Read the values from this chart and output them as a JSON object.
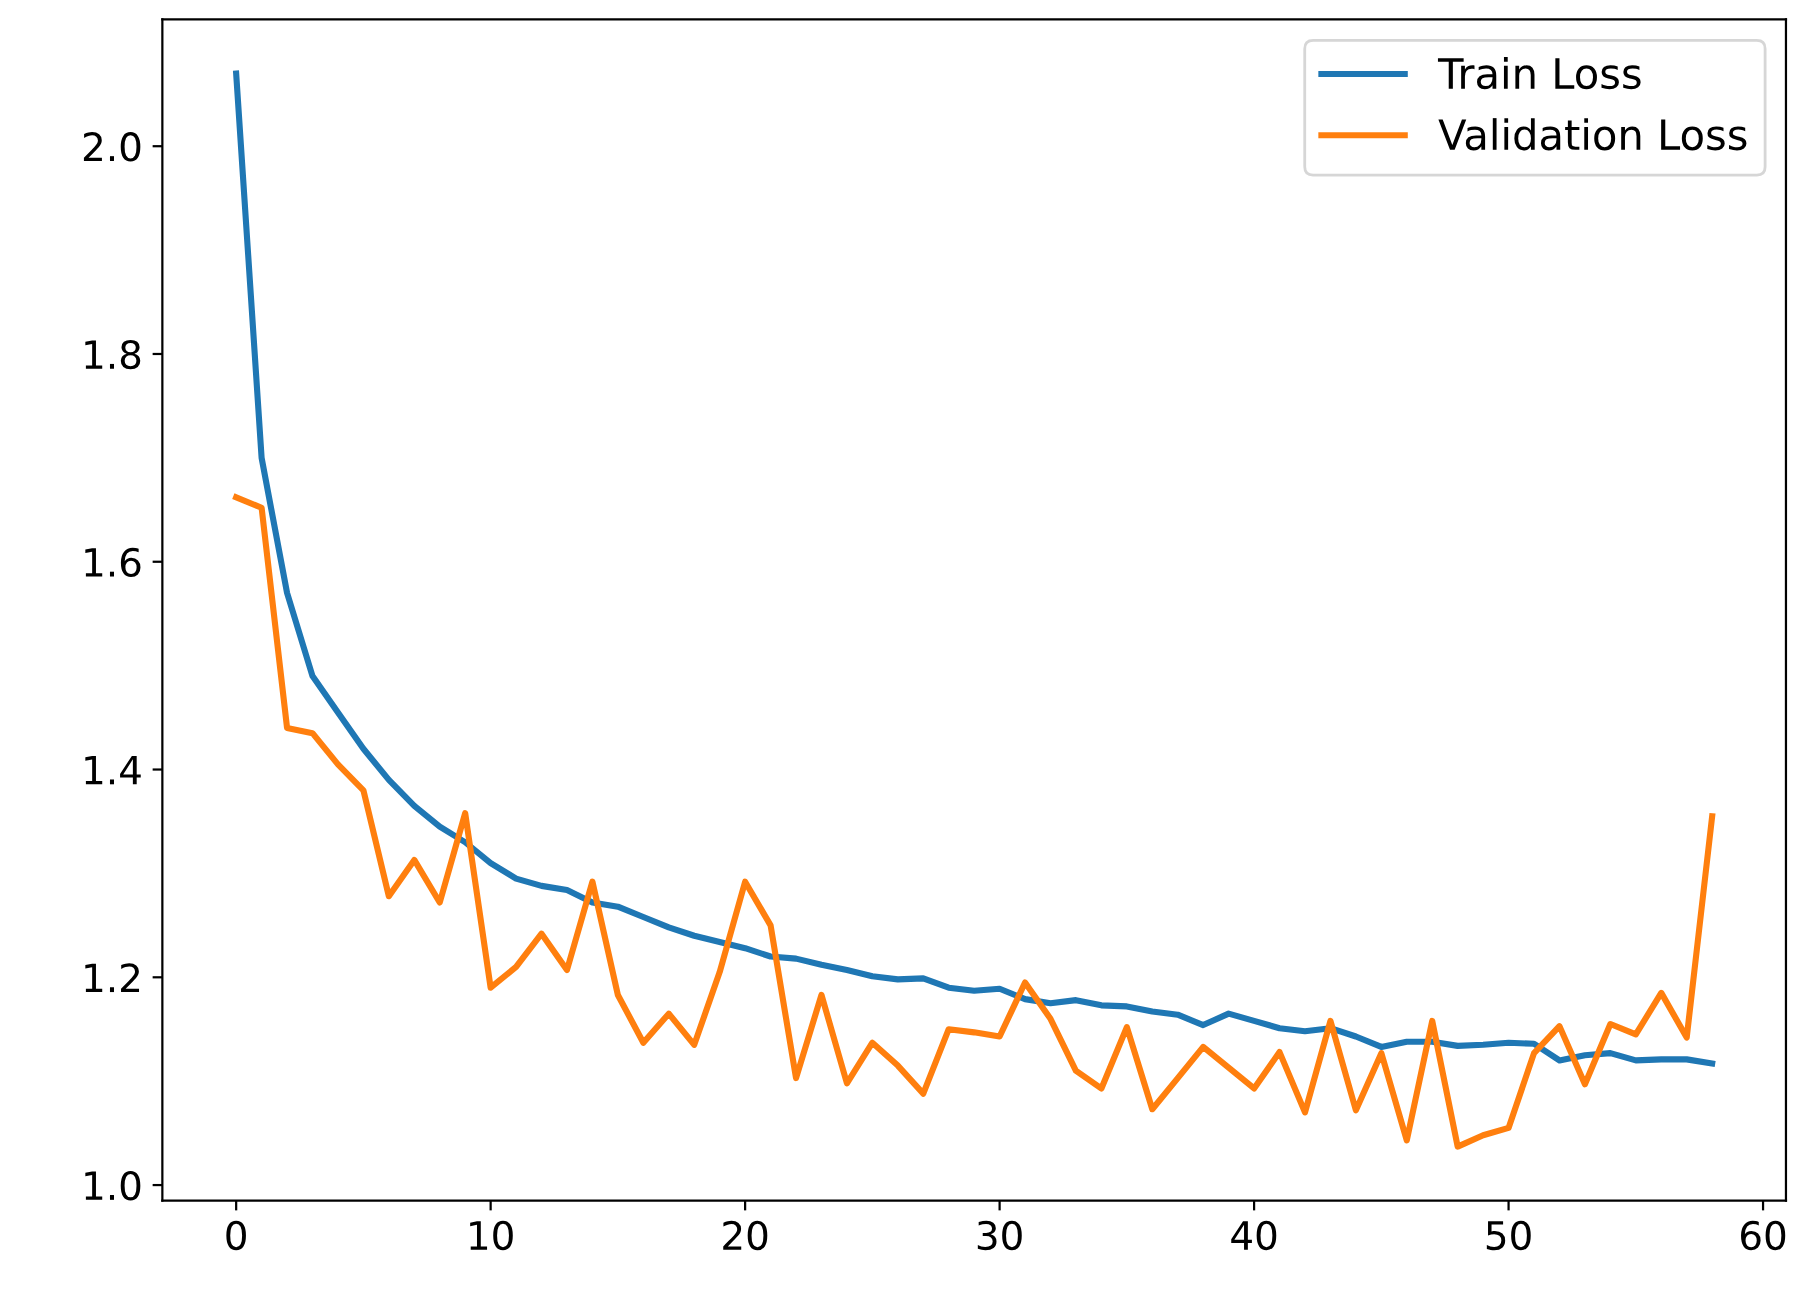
{
  "chart_data": {
    "type": "line",
    "x": [
      0,
      1,
      2,
      3,
      4,
      5,
      6,
      7,
      8,
      9,
      10,
      11,
      12,
      13,
      14,
      15,
      16,
      17,
      18,
      19,
      20,
      21,
      22,
      23,
      24,
      25,
      26,
      27,
      28,
      29,
      30,
      31,
      32,
      33,
      34,
      35,
      36,
      37,
      38,
      39,
      40,
      41,
      42,
      43,
      44,
      45,
      46,
      47,
      48,
      49,
      50,
      51,
      52,
      53,
      54,
      55,
      56,
      57,
      58
    ],
    "series": [
      {
        "name": "Train Loss",
        "color": "#1f77b4",
        "values": [
          2.07,
          1.7,
          1.57,
          1.49,
          1.455,
          1.42,
          1.39,
          1.365,
          1.345,
          1.33,
          1.31,
          1.295,
          1.288,
          1.284,
          1.272,
          1.268,
          1.258,
          1.248,
          1.24,
          1.234,
          1.228,
          1.22,
          1.218,
          1.212,
          1.207,
          1.201,
          1.198,
          1.199,
          1.19,
          1.187,
          1.189,
          1.179,
          1.175,
          1.178,
          1.173,
          1.172,
          1.167,
          1.164,
          1.154,
          1.165,
          1.158,
          1.151,
          1.148,
          1.151,
          1.143,
          1.133,
          1.138,
          1.138,
          1.134,
          1.135,
          1.137,
          1.136,
          1.12,
          1.125,
          1.127,
          1.12,
          1.121,
          1.121,
          1.117
        ]
      },
      {
        "name": "Validation Loss",
        "color": "#ff7f0e",
        "values": [
          1.662,
          1.652,
          1.44,
          1.435,
          1.405,
          1.38,
          1.278,
          1.313,
          1.272,
          1.358,
          1.19,
          1.21,
          1.242,
          1.207,
          1.292,
          1.183,
          1.137,
          1.165,
          1.135,
          1.205,
          1.292,
          1.25,
          1.103,
          1.183,
          1.098,
          1.137,
          1.115,
          1.088,
          1.15,
          1.147,
          1.143,
          1.195,
          1.16,
          1.11,
          1.093,
          1.152,
          1.073,
          1.103,
          1.133,
          1.113,
          1.093,
          1.128,
          1.07,
          1.158,
          1.072,
          1.127,
          1.043,
          1.158,
          1.037,
          1.048,
          1.055,
          1.127,
          1.153,
          1.097,
          1.155,
          1.145,
          1.185,
          1.142,
          1.355
        ]
      }
    ],
    "xlim": [
      -2.9,
      60.9
    ],
    "ylim": [
      0.985,
      2.122
    ],
    "xticks": [
      0,
      10,
      20,
      30,
      40,
      50,
      60
    ],
    "yticks": [
      {
        "value": 1.0,
        "label": "1.0"
      },
      {
        "value": 1.2,
        "label": "1.2"
      },
      {
        "value": 1.4,
        "label": "1.4"
      },
      {
        "value": 1.6,
        "label": "1.6"
      },
      {
        "value": 1.8,
        "label": "1.8"
      },
      {
        "value": 2.0,
        "label": "2.0"
      }
    ],
    "legend": "top right",
    "grid": false,
    "marker": "none",
    "line_style": "solid"
  }
}
